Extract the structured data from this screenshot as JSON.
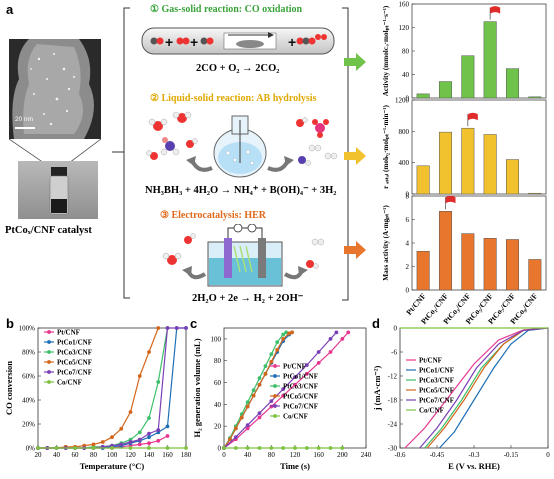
{
  "panel_a": {
    "letter": "a",
    "scale_bar": "20 nm",
    "catalyst_label": "PtCoₓ/CNF catalyst",
    "reactions": [
      {
        "num": "①",
        "title": "Gas-solid reaction: CO oxidation",
        "equation": "2CO + O₂ → 2CO₂",
        "color": "#3aa33a"
      },
      {
        "num": "②",
        "title": "Liquid-solid reaction: AB hydrolysis",
        "equation": "NH₃BH₃ + 4H₂O → NH₄⁺ + B(OH)₄⁻ + 3H₂",
        "color": "#e0a800"
      },
      {
        "num": "③",
        "title": "Electrocatalysis: HER",
        "equation": "2H₂O + 2e → H₂ + 2OH⁻",
        "color": "#e06a1a"
      }
    ],
    "bar_charts": {
      "categories": [
        "Pt/CNF",
        "PtCo₁/CNF",
        "PtCo₃/CNF",
        "PtCo₅/CNF",
        "PtCo₇/CNF",
        "PtCo₉/CNF"
      ],
      "charts": [
        {
          "ylabel": "Activity (mmolᴄₒ·molₚₜ⁻¹·s⁻¹)",
          "ylim": [
            0,
            160
          ],
          "ticks": [
            0,
            40,
            80,
            120,
            160
          ],
          "values": [
            7,
            28,
            72,
            130,
            50,
            2
          ],
          "flag_index": 3,
          "color": "#6fc24a"
        },
        {
          "ylabel": "r ₐₛₜₐₗ (molₕ₂·molₚₜ⁻¹·min⁻¹)",
          "ylim": [
            0,
            1200
          ],
          "ticks": [
            0,
            400,
            800,
            1200
          ],
          "values": [
            360,
            790,
            840,
            760,
            440,
            10
          ],
          "flag_index": 2,
          "color": "#f2c12e"
        },
        {
          "ylabel": "Mass activity (A·mgₚₜ⁻¹)",
          "ylim": [
            0,
            8
          ],
          "ticks": [
            0,
            2,
            4,
            6,
            8
          ],
          "values": [
            3.3,
            6.7,
            4.8,
            4.4,
            4.3,
            2.6
          ],
          "flag_index": 1,
          "color": "#e8762d"
        }
      ]
    }
  },
  "panel_b": {
    "letter": "b",
    "xlabel": "Temperature (°C)",
    "ylabel": "CO conversion",
    "xticks": [
      20,
      40,
      60,
      80,
      100,
      120,
      140,
      160,
      180
    ],
    "yticks": [
      "0%",
      "20%",
      "40%",
      "60%",
      "80%",
      "100%"
    ],
    "legend": [
      "Pt/CNF",
      "PtCo1/CNF",
      "PtCo3/CNF",
      "PtCo5/CNF",
      "PtCo7/CNF",
      "Co/CNF"
    ]
  },
  "panel_c": {
    "letter": "c",
    "xlabel": "Time (s)",
    "ylabel": "H₂ generation volume (mL)",
    "xticks": [
      0,
      40,
      80,
      120,
      160,
      200,
      240
    ],
    "yticks": [
      0,
      20,
      40,
      60,
      80,
      100
    ],
    "legend": [
      "Pt/CNF",
      "PtCo1/CNF",
      "PtCo3/CNF",
      "PtCo5/CNF",
      "PtCo7/CNF",
      "Co/CNF"
    ]
  },
  "panel_d": {
    "letter": "d",
    "xlabel": "E (V vs. RHE)",
    "ylabel": "j (mA·cm⁻²)",
    "xticks": [
      "-0.6",
      "-0.45",
      "-0.3",
      "-0.15",
      "0"
    ],
    "yticks": [
      0,
      -6,
      -12,
      -18,
      -24,
      -30
    ],
    "legend": [
      "Pt/CNF",
      "PtCo1/CNF",
      "PtCo3/CNF",
      "PtCo5/CNF",
      "PtCo7/CNF",
      "Co/CNF"
    ]
  },
  "series_colors": [
    "#e8368f",
    "#1f6fb5",
    "#3dbf6a",
    "#d4661c",
    "#7b3fb5",
    "#7fc241"
  ],
  "chart_data": [
    {
      "type": "bar",
      "title": "",
      "categories": [
        "Pt/CNF",
        "PtCo₁/CNF",
        "PtCo₃/CNF",
        "PtCo₅/CNF",
        "PtCo₇/CNF",
        "PtCo₉/CNF"
      ],
      "values": [
        7,
        28,
        72,
        130,
        50,
        2
      ],
      "ylim": [
        0,
        160
      ]
    },
    {
      "type": "bar",
      "title": "",
      "categories": [
        "Pt/CNF",
        "PtCo₁/CNF",
        "PtCo₃/CNF",
        "PtCo₅/CNF",
        "PtCo₇/CNF",
        "PtCo₉/CNF"
      ],
      "values": [
        360,
        790,
        840,
        760,
        440,
        10
      ],
      "ylim": [
        0,
        1200
      ]
    },
    {
      "type": "bar",
      "title": "",
      "categories": [
        "Pt/CNF",
        "PtCo₁/CNF",
        "PtCo₃/CNF",
        "PtCo₅/CNF",
        "PtCo₇/CNF",
        "PtCo₉/CNF"
      ],
      "values": [
        3.3,
        6.7,
        4.8,
        4.4,
        4.3,
        2.6
      ],
      "ylim": [
        0,
        8
      ]
    },
    {
      "type": "line",
      "xlabel": "Temperature (°C)",
      "ylabel": "CO conversion",
      "xlim": [
        20,
        180
      ],
      "ylim": [
        0,
        100
      ],
      "series": [
        {
          "name": "Pt/CNF",
          "x": [
            20,
            30,
            40,
            50,
            60,
            70,
            80,
            90,
            100,
            110,
            120,
            130,
            140,
            150,
            160
          ],
          "y": [
            0,
            0,
            0,
            0,
            0,
            0,
            0,
            0,
            0,
            1,
            2,
            3,
            4,
            6,
            10
          ]
        },
        {
          "name": "PtCo1/CNF",
          "x": [
            20,
            30,
            40,
            50,
            60,
            70,
            80,
            90,
            100,
            110,
            120,
            130,
            140,
            150,
            160,
            170,
            180
          ],
          "y": [
            0,
            0,
            0,
            0,
            0,
            0,
            0,
            0,
            1,
            2,
            4,
            6,
            9,
            13,
            18,
            100,
            100
          ]
        },
        {
          "name": "PtCo3/CNF",
          "x": [
            20,
            30,
            40,
            50,
            60,
            70,
            80,
            90,
            100,
            110,
            120,
            130,
            140,
            150,
            160
          ],
          "y": [
            0,
            0,
            0,
            0,
            0,
            0,
            1,
            1,
            2,
            4,
            7,
            13,
            25,
            55,
            100
          ]
        },
        {
          "name": "PtCo5/CNF",
          "x": [
            20,
            30,
            40,
            50,
            60,
            70,
            80,
            90,
            100,
            110,
            120,
            130,
            140,
            150
          ],
          "y": [
            0,
            0,
            0,
            1,
            1,
            2,
            3,
            5,
            9,
            16,
            30,
            60,
            80,
            100
          ]
        },
        {
          "name": "PtCo7/CNF",
          "x": [
            20,
            30,
            40,
            50,
            60,
            70,
            80,
            90,
            100,
            110,
            120,
            130,
            140,
            150,
            160,
            170,
            180
          ],
          "y": [
            0,
            0,
            0,
            0,
            0,
            0,
            0,
            1,
            2,
            3,
            5,
            7,
            12,
            15,
            100,
            100,
            100
          ]
        },
        {
          "name": "Co/CNF",
          "x": [
            20,
            40,
            60,
            80,
            100,
            120,
            140,
            160,
            180
          ],
          "y": [
            0,
            0,
            0,
            0,
            0,
            0,
            0,
            0,
            0
          ]
        }
      ]
    },
    {
      "type": "line",
      "xlabel": "Time (s)",
      "ylabel": "H₂ generation volume (mL)",
      "xlim": [
        0,
        240
      ],
      "ylim": [
        0,
        110
      ],
      "series": [
        {
          "name": "Pt/CNF",
          "x": [
            0,
            20,
            40,
            60,
            80,
            100,
            120,
            140,
            160,
            180,
            200,
            210
          ],
          "y": [
            0,
            8,
            18,
            28,
            38,
            48,
            58,
            68,
            78,
            88,
            100,
            106
          ]
        },
        {
          "name": "PtCo1/CNF",
          "x": [
            0,
            10,
            20,
            30,
            40,
            50,
            60,
            70,
            80,
            90,
            100,
            110,
            115
          ],
          "y": [
            0,
            8,
            18,
            28,
            38,
            48,
            58,
            68,
            78,
            88,
            98,
            104,
            106
          ]
        },
        {
          "name": "PtCo3/CNF",
          "x": [
            0,
            10,
            20,
            30,
            40,
            50,
            60,
            70,
            80,
            90,
            100,
            105
          ],
          "y": [
            0,
            9,
            20,
            31,
            42,
            53,
            64,
            75,
            86,
            97,
            104,
            106
          ]
        },
        {
          "name": "PtCo5/CNF",
          "x": [
            0,
            10,
            20,
            30,
            40,
            50,
            60,
            70,
            80,
            90,
            100,
            110,
            115
          ],
          "y": [
            0,
            8,
            18,
            28,
            38,
            48,
            58,
            68,
            79,
            90,
            100,
            105,
            106
          ]
        },
        {
          "name": "PtCo7/CNF",
          "x": [
            0,
            20,
            40,
            60,
            80,
            100,
            120,
            140,
            160,
            180,
            190
          ],
          "y": [
            0,
            10,
            21,
            32,
            43,
            54,
            65,
            76,
            88,
            100,
            106
          ]
        },
        {
          "name": "Co/CNF",
          "x": [
            0,
            20,
            40,
            60,
            80,
            100,
            120,
            140,
            160,
            180,
            200
          ],
          "y": [
            0,
            0,
            0,
            0,
            0,
            0,
            0,
            0,
            0,
            0,
            0
          ]
        }
      ]
    },
    {
      "type": "line",
      "xlabel": "E (V vs. RHE)",
      "ylabel": "j (mA·cm⁻²)",
      "xlim": [
        -0.6,
        0
      ],
      "ylim": [
        -30,
        0
      ],
      "series": [
        {
          "name": "Pt/CNF",
          "x": [
            -0.58,
            -0.5,
            -0.4,
            -0.3,
            -0.2,
            -0.1,
            0
          ],
          "y": [
            -30,
            -25,
            -17,
            -9,
            -3,
            -0.5,
            0
          ]
        },
        {
          "name": "PtCo1/CNF",
          "x": [
            -0.44,
            -0.38,
            -0.3,
            -0.22,
            -0.15,
            -0.08,
            0
          ],
          "y": [
            -30,
            -26,
            -18,
            -10,
            -4,
            -0.6,
            0
          ]
        },
        {
          "name": "PtCo3/CNF",
          "x": [
            -0.5,
            -0.43,
            -0.35,
            -0.27,
            -0.18,
            -0.1,
            0
          ],
          "y": [
            -30,
            -25,
            -18,
            -10,
            -4,
            -0.6,
            0
          ]
        },
        {
          "name": "PtCo5/CNF",
          "x": [
            -0.49,
            -0.42,
            -0.34,
            -0.26,
            -0.18,
            -0.1,
            0
          ],
          "y": [
            -30,
            -25,
            -18,
            -10,
            -4,
            -0.6,
            0
          ]
        },
        {
          "name": "PtCo7/CNF",
          "x": [
            -0.52,
            -0.45,
            -0.37,
            -0.29,
            -0.2,
            -0.1,
            0
          ],
          "y": [
            -30,
            -25,
            -18,
            -10,
            -4,
            -0.6,
            0
          ]
        },
        {
          "name": "Co/CNF",
          "x": [
            -0.6,
            -0.3,
            0
          ],
          "y": [
            0,
            0,
            0
          ]
        }
      ]
    }
  ]
}
